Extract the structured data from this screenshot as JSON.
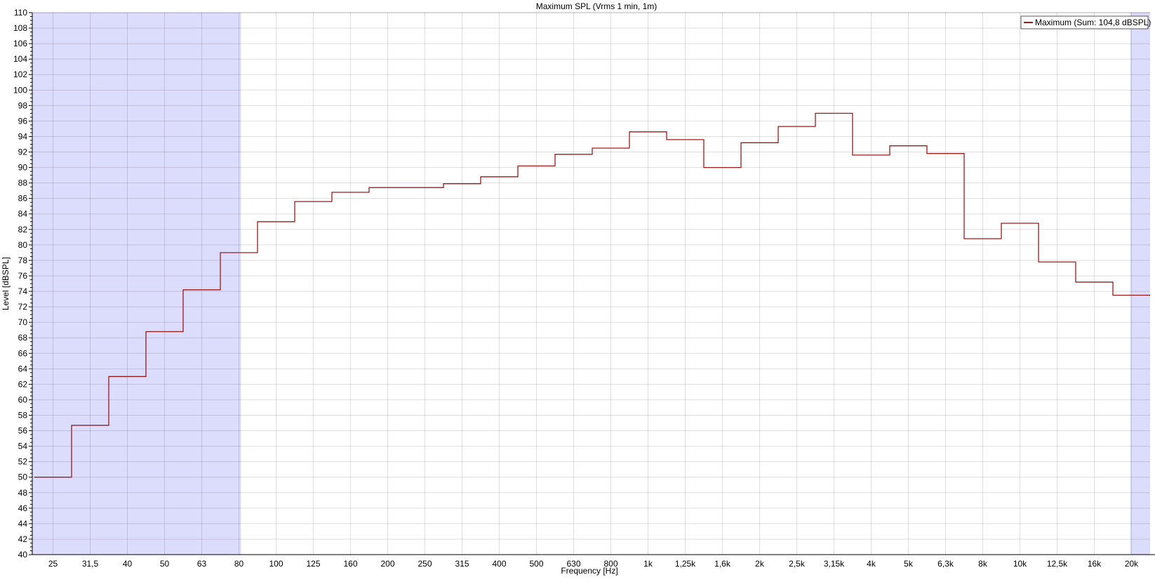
{
  "chart_data": {
    "type": "line",
    "style": "step",
    "title": "Maximum SPL (Vrms 1 min, 1m)",
    "xlabel": "Frequency [Hz]",
    "ylabel": "Level [dBSPL]",
    "x_scale": "log (third-octave bands)",
    "ylim": [
      40,
      110
    ],
    "yticks": [
      40,
      42,
      44,
      46,
      48,
      50,
      52,
      54,
      56,
      58,
      60,
      62,
      64,
      66,
      68,
      70,
      72,
      74,
      76,
      78,
      80,
      82,
      84,
      86,
      88,
      90,
      92,
      94,
      96,
      98,
      100,
      102,
      104,
      106,
      108,
      110
    ],
    "categories": [
      "25",
      "31,5",
      "40",
      "50",
      "63",
      "80",
      "100",
      "125",
      "160",
      "200",
      "250",
      "315",
      "400",
      "500",
      "630",
      "800",
      "1k",
      "1,25k",
      "1,6k",
      "2k",
      "2,5k",
      "3,15k",
      "4k",
      "5k",
      "6,3k",
      "8k",
      "10k",
      "12,5k",
      "16k",
      "20k"
    ],
    "grid": true,
    "legend_position": "top-right",
    "shaded_ranges": [
      [
        "25",
        "80"
      ],
      [
        "20k",
        "20k+"
      ]
    ],
    "shade_color": "#dcdcfc",
    "series": [
      {
        "name": "Maximum (Sum: 104,8 dBSPL)",
        "color": "#9b1b1b",
        "values": [
          50.0,
          56.7,
          63.0,
          68.8,
          74.2,
          79.0,
          83.0,
          85.6,
          86.8,
          87.4,
          87.4,
          87.9,
          88.8,
          90.2,
          91.7,
          92.5,
          94.6,
          93.6,
          90.0,
          93.2,
          95.3,
          97.0,
          91.6,
          92.8,
          91.8,
          80.8,
          82.8,
          77.8,
          75.2,
          73.5
        ]
      }
    ]
  }
}
